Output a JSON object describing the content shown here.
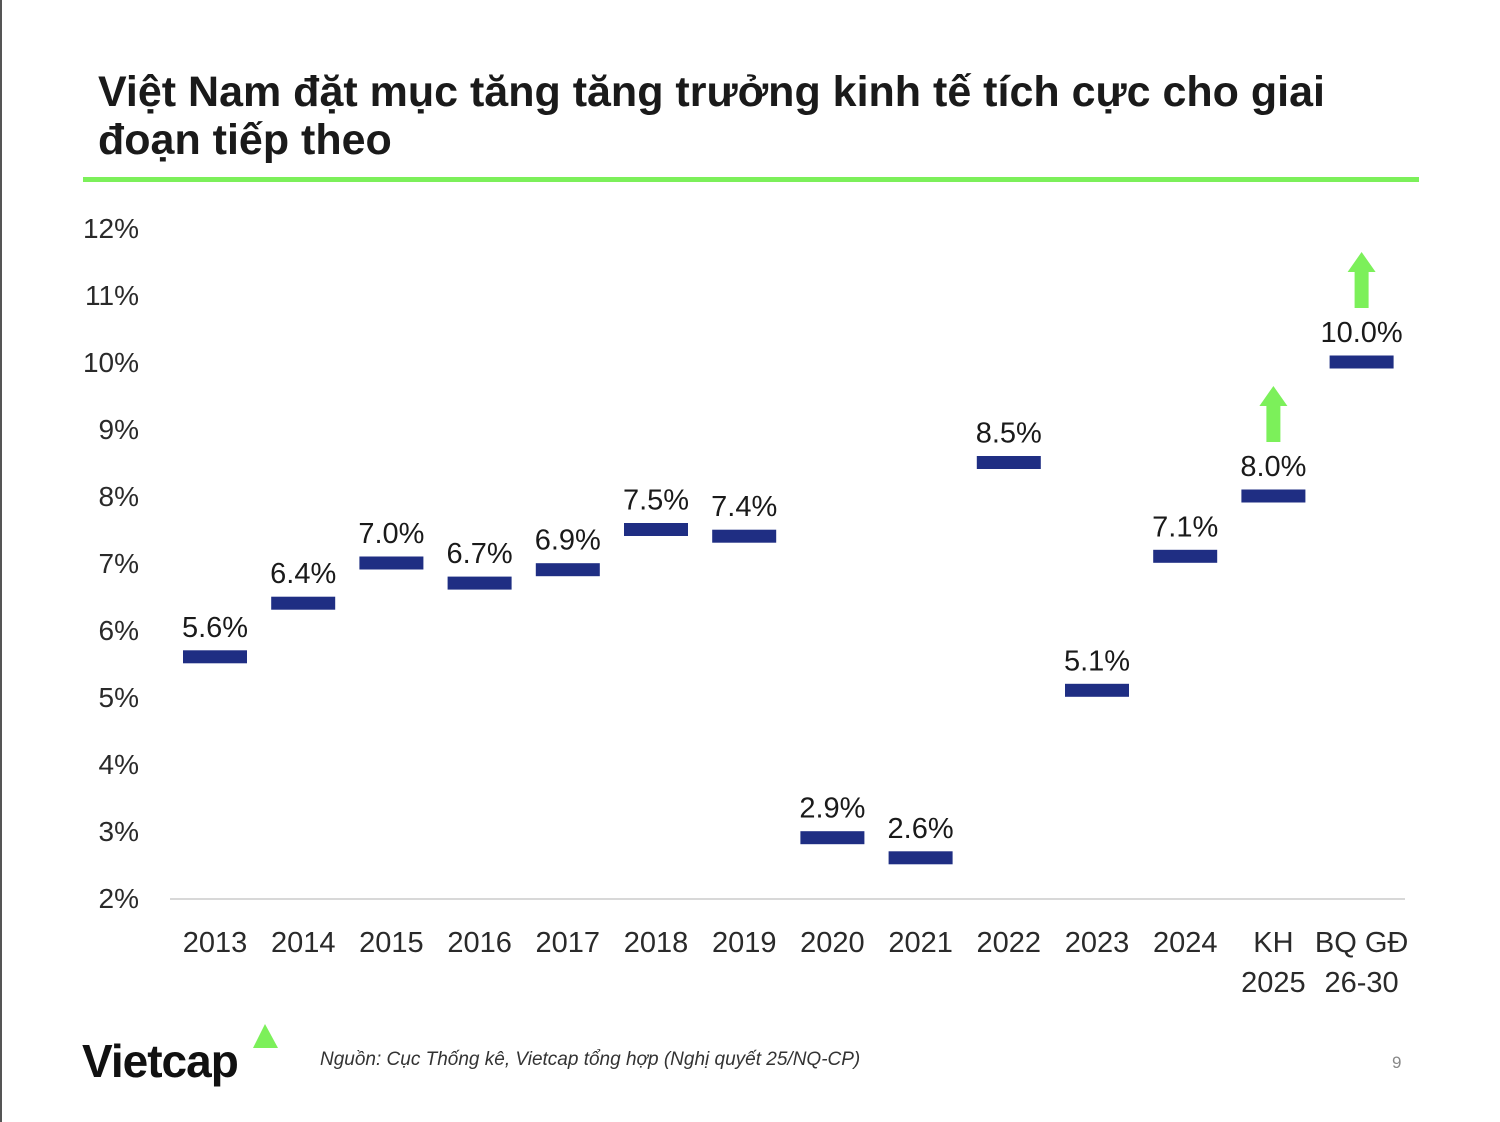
{
  "slide": {
    "title": "Việt Nam đặt mục tăng tăng trưởng kinh tế tích cực cho giai đoạn tiếp theo",
    "source": "Nguồn: Cục Thống kê, Vietcap tổng hợp (Nghị quyết 25/NQ-CP)",
    "logo_text": "Vietcap",
    "page_number": "9"
  },
  "colors": {
    "accent_green": "#7CF05A",
    "marker_navy": "#1F2E83",
    "text": "#1a1a1a",
    "axis": "#cccccc"
  },
  "chart_data": {
    "type": "dot",
    "title": "",
    "xlabel": "",
    "ylabel": "",
    "ylim": [
      2,
      12
    ],
    "yticks": [
      2,
      3,
      4,
      5,
      6,
      7,
      8,
      9,
      10,
      11,
      12
    ],
    "ytick_labels": [
      "2%",
      "3%",
      "4%",
      "5%",
      "6%",
      "7%",
      "8%",
      "9%",
      "10%",
      "11%",
      "12%"
    ],
    "categories": [
      [
        "2013"
      ],
      [
        "2014"
      ],
      [
        "2015"
      ],
      [
        "2016"
      ],
      [
        "2017"
      ],
      [
        "2018"
      ],
      [
        "2019"
      ],
      [
        "2020"
      ],
      [
        "2021"
      ],
      [
        "2022"
      ],
      [
        "2023"
      ],
      [
        "2024"
      ],
      [
        "KH",
        "2025"
      ],
      [
        "BQ GĐ",
        "26-30"
      ]
    ],
    "values": [
      5.6,
      6.4,
      7.0,
      6.7,
      6.9,
      7.5,
      7.4,
      2.9,
      2.6,
      8.5,
      5.1,
      7.1,
      8.0,
      10.0
    ],
    "labels": [
      "5.6%",
      "6.4%",
      "7.0%",
      "6.7%",
      "6.9%",
      "7.5%",
      "7.4%",
      "2.9%",
      "2.6%",
      "8.5%",
      "5.1%",
      "7.1%",
      "8.0%",
      "10.0%"
    ],
    "up_arrows": [
      "KH 2025",
      "BQ GĐ 26-30"
    ],
    "grid": false
  }
}
